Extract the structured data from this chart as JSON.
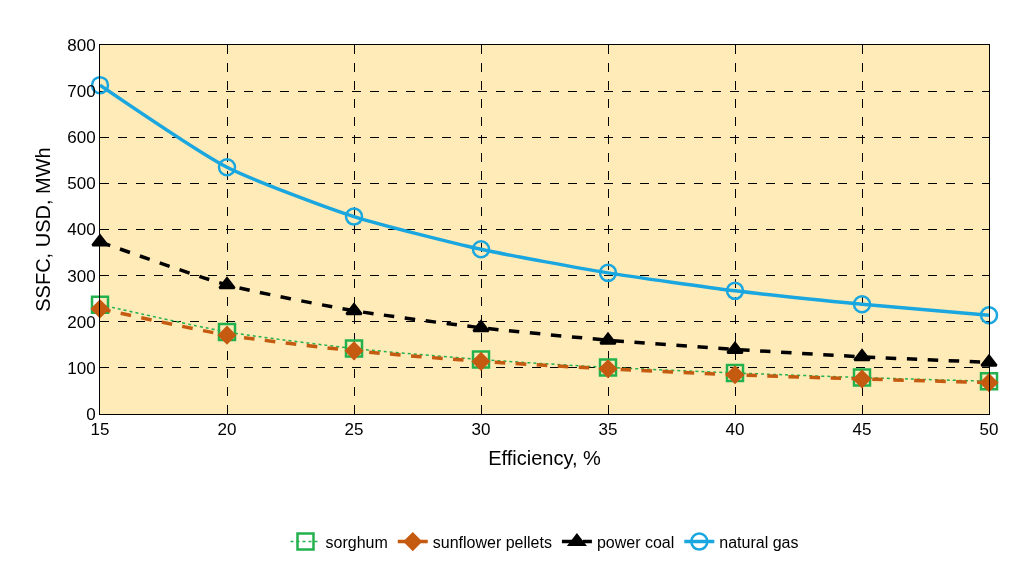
{
  "chart_data": {
    "type": "line",
    "xlabel": "Efficiency, %",
    "ylabel": "SSFC, USD, MWh",
    "x": [
      15,
      20,
      25,
      30,
      35,
      40,
      45,
      50
    ],
    "xlim": [
      15,
      50
    ],
    "xticks": [
      15,
      20,
      25,
      30,
      35,
      40,
      45,
      50
    ],
    "ylim": [
      0,
      800
    ],
    "yticks": [
      0,
      100,
      200,
      300,
      400,
      500,
      600,
      700,
      800
    ],
    "grid": true,
    "legend": "bottom",
    "series": [
      {
        "name": "sorghum",
        "color": "#22b14c",
        "marker": "square",
        "line_style": "dotted",
        "values": [
          237,
          178,
          142,
          118,
          101,
          89,
          79,
          71
        ]
      },
      {
        "name": "sunflower pellets",
        "color": "#c55a11",
        "marker": "diamond",
        "line_style": "dashed",
        "values": [
          228,
          171,
          137,
          114,
          98,
          85,
          76,
          68
        ]
      },
      {
        "name": "power coal",
        "color": "#000000",
        "marker": "triangle",
        "line_style": "dashed",
        "values": [
          373,
          280,
          224,
          187,
          160,
          140,
          124,
          112
        ]
      },
      {
        "name": "natural gas",
        "color": "#1aa6df",
        "marker": "circle",
        "line_style": "solid",
        "values": [
          713,
          535,
          428,
          357,
          306,
          267,
          238,
          214
        ]
      }
    ]
  }
}
